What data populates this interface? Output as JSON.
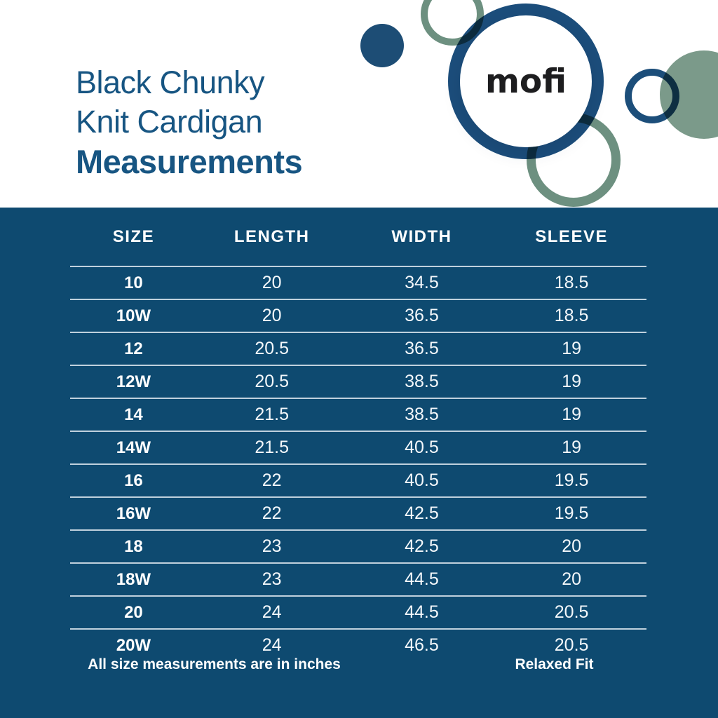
{
  "title": {
    "line1": "Black Chunky",
    "line2": "Knit Cardigan",
    "line3": "Measurements"
  },
  "logo": {
    "brand": "mofi"
  },
  "table": {
    "headers": [
      "SIZE",
      "LENGTH",
      "WIDTH",
      "SLEEVE"
    ],
    "rows": [
      [
        "10",
        "20",
        "34.5",
        "18.5"
      ],
      [
        "10W",
        "20",
        "36.5",
        "18.5"
      ],
      [
        "12",
        "20.5",
        "36.5",
        "19"
      ],
      [
        "12W",
        "20.5",
        "38.5",
        "19"
      ],
      [
        "14",
        "21.5",
        "38.5",
        "19"
      ],
      [
        "14W",
        "21.5",
        "40.5",
        "19"
      ],
      [
        "16",
        "22",
        "40.5",
        "19.5"
      ],
      [
        "16W",
        "22",
        "42.5",
        "19.5"
      ],
      [
        "18",
        "23",
        "42.5",
        "20"
      ],
      [
        "18W",
        "23",
        "44.5",
        "20"
      ],
      [
        "20",
        "24",
        "44.5",
        "20.5"
      ],
      [
        "20W",
        "24",
        "46.5",
        "20.5"
      ]
    ]
  },
  "footer": {
    "note": "All size measurements are in inches",
    "fit": "Relaxed Fit"
  },
  "chart_data": {
    "type": "table",
    "title": "Black Chunky Knit Cardigan Measurements",
    "units": "inches",
    "columns": [
      "SIZE",
      "LENGTH",
      "WIDTH",
      "SLEEVE"
    ],
    "rows": [
      [
        "10",
        20,
        34.5,
        18.5
      ],
      [
        "10W",
        20,
        36.5,
        18.5
      ],
      [
        "12",
        20.5,
        36.5,
        19
      ],
      [
        "12W",
        20.5,
        38.5,
        19
      ],
      [
        "14",
        21.5,
        38.5,
        19
      ],
      [
        "14W",
        21.5,
        40.5,
        19
      ],
      [
        "16",
        22,
        40.5,
        19.5
      ],
      [
        "16W",
        22,
        42.5,
        19.5
      ],
      [
        "18",
        23,
        42.5,
        20
      ],
      [
        "18W",
        23,
        44.5,
        20
      ],
      [
        "20",
        24,
        44.5,
        20.5
      ],
      [
        "20W",
        24,
        46.5,
        20.5
      ]
    ],
    "annotations": [
      "All size measurements are in inches",
      "Relaxed Fit"
    ]
  },
  "colors": {
    "band_blue": "#0e4a70",
    "title_blue": "#175582",
    "circle_blue": "#1c4e7a",
    "sage_green_ring": "#6d9080",
    "sage_green_fill": "#7b9a8a",
    "logo_text": "#1d1d1f",
    "divider": "#dfe9f0"
  }
}
